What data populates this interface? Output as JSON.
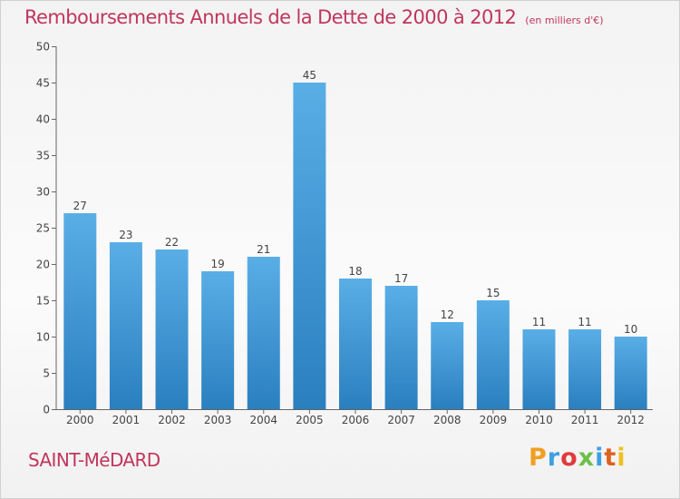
{
  "chart_data": {
    "type": "bar",
    "title": "Remboursements Annuels de la Dette de 2000 à 2012",
    "subtitle": "(en milliers d'€)",
    "categories": [
      "2000",
      "2001",
      "2002",
      "2003",
      "2004",
      "2005",
      "2006",
      "2007",
      "2008",
      "2009",
      "2010",
      "2011",
      "2012"
    ],
    "values": [
      27,
      23,
      22,
      19,
      21,
      45,
      18,
      17,
      12,
      15,
      11,
      11,
      10
    ],
    "ylim": [
      0,
      50
    ],
    "yticks": [
      0,
      5,
      10,
      15,
      20,
      25,
      30,
      35,
      40,
      45,
      50
    ],
    "grid": false,
    "bar_color_top": "#5aaee6",
    "bar_color_bottom": "#2a7fbf"
  },
  "footer": {
    "commune": "SAINT-MéDARD",
    "logo_text": "Proxiti",
    "logo_colors": [
      "#f0a020",
      "#3ca0e0",
      "#e03c3c",
      "#6cc04a",
      "#3ca0e0",
      "#e06020",
      "#f0c020"
    ]
  },
  "colors": {
    "title": "#c0365d"
  }
}
